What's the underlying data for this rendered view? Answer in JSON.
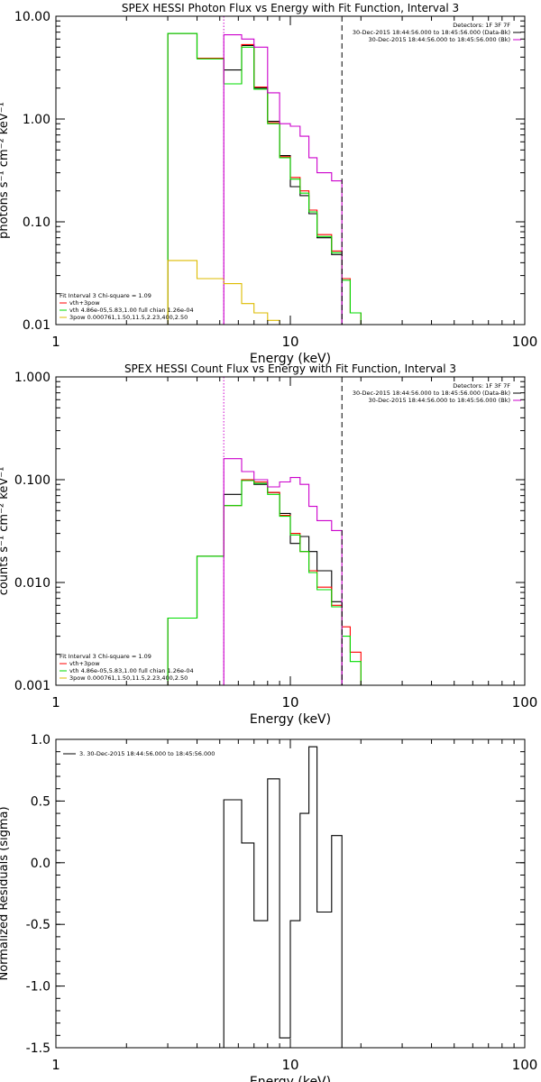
{
  "chart_data": [
    {
      "type": "line",
      "title": "SPEX HESSI Photon Flux vs Energy with Fit Function, Interval 3",
      "xlabel": "Energy (keV)",
      "ylabel": "photons s⁻¹ cm⁻² keV⁻¹",
      "xscale": "log",
      "yscale": "log",
      "xlim": [
        1,
        100
      ],
      "ylim": [
        0.01,
        10
      ],
      "x_ticks": [
        1,
        10,
        100
      ],
      "x_tick_labels": [
        "1",
        "10",
        "100"
      ],
      "y_ticks": [
        0.01,
        0.1,
        1,
        10
      ],
      "y_tick_labels": [
        "0.01",
        "0.10",
        "1.00",
        "10.00"
      ],
      "vlines": [
        {
          "x": 5.2,
          "style": "dotted",
          "color": "#cc00cc"
        },
        {
          "x": 16.6,
          "style": "dashed",
          "color": "#000000"
        }
      ],
      "legend_top_right": [
        "Detectors: 1F 3F 7F",
        "30-Dec-2015 18:44:56.000 to 18:45:56.000 (Data-Bk)",
        "30-Dec-2015 18:44:56.000 to 18:45:56.000 (Bk)"
      ],
      "legend_bottom_left": [
        "Fit Interval 3   Chi-square = 1.09",
        "vth+3pow",
        "vth 4.86e-05,5.83,1.00  full chian 1.26e-04",
        "3pow 0.000761,1.50,11.5,2.23,400,2.50"
      ],
      "series": [
        {
          "color": "#000000",
          "edges": [
            3,
            4,
            5.2,
            6.2,
            7,
            8,
            9,
            10,
            11,
            12,
            13,
            15,
            16.6
          ],
          "values": [
            6.8,
            3.9,
            3.0,
            5.2,
            2.0,
            0.95,
            0.44,
            0.22,
            0.18,
            0.12,
            0.07,
            0.048
          ]
        },
        {
          "color": "#ff0000",
          "edges": [
            3,
            4,
            5.2,
            6.2,
            7,
            8,
            9,
            10,
            11,
            12,
            13,
            15,
            16.6,
            18,
            20
          ],
          "values": [
            6.8,
            3.9,
            2.2,
            5.3,
            2.05,
            0.92,
            0.43,
            0.27,
            0.2,
            0.13,
            0.075,
            0.052,
            0.028,
            0.013
          ]
        },
        {
          "color": "#00dd00",
          "edges": [
            3,
            4,
            5.2,
            6.2,
            7,
            8,
            9,
            10,
            11,
            12,
            13,
            15,
            16.6,
            18,
            20
          ],
          "values": [
            6.8,
            3.85,
            2.2,
            5.0,
            1.95,
            0.9,
            0.42,
            0.26,
            0.19,
            0.125,
            0.072,
            0.05,
            0.027,
            0.013
          ]
        },
        {
          "color": "#cc00cc",
          "edges": [
            5.2,
            6.2,
            7,
            8,
            9,
            10,
            11,
            12,
            13,
            15,
            16.6
          ],
          "values": [
            6.6,
            6.0,
            5.0,
            1.8,
            0.9,
            0.85,
            0.68,
            0.42,
            0.3,
            0.25
          ]
        },
        {
          "color": "#ddbb00",
          "edges": [
            3,
            4,
            5.2,
            6.2,
            7,
            8,
            9,
            10
          ],
          "values": [
            0.042,
            0.028,
            0.025,
            0.016,
            0.013,
            0.011,
            0.01
          ]
        }
      ]
    },
    {
      "type": "line",
      "title": "SPEX HESSI Count Flux vs Energy with Fit Function, Interval 3",
      "xlabel": "Energy (keV)",
      "ylabel": "counts s⁻¹ cm⁻² keV⁻¹",
      "xscale": "log",
      "yscale": "log",
      "xlim": [
        1,
        100
      ],
      "ylim": [
        0.001,
        1
      ],
      "x_ticks": [
        1,
        10,
        100
      ],
      "x_tick_labels": [
        "1",
        "10",
        "100"
      ],
      "y_ticks": [
        0.001,
        0.01,
        0.1,
        1
      ],
      "y_tick_labels": [
        "0.001",
        "0.010",
        "0.100",
        "1.000"
      ],
      "vlines": [
        {
          "x": 5.2,
          "style": "dotted",
          "color": "#cc00cc"
        },
        {
          "x": 16.6,
          "style": "dashed",
          "color": "#000000"
        }
      ],
      "legend_top_right": [
        "Detectors: 1F 3F 7F",
        "30-Dec-2015 18:44:56.000 to 18:45:56.000 (Data-Bk)",
        "30-Dec-2015 18:44:56.000 to 18:45:56.000 (Bk)"
      ],
      "legend_bottom_left": [
        "Fit Interval 3   Chi-square = 1.09",
        "vth+3pow",
        "vth 4.86e-05,5.83,1.00  full chian 1.26e-04",
        "3pow 0.000761,1.50,11.5,2.23,400,2.50"
      ],
      "series": [
        {
          "color": "#000000",
          "edges": [
            3,
            4,
            5.2,
            6.2,
            7,
            8,
            9,
            10,
            11,
            12,
            13,
            15,
            16.6
          ],
          "values": [
            0.0045,
            0.018,
            0.072,
            0.1,
            0.09,
            0.075,
            0.047,
            0.024,
            0.028,
            0.02,
            0.013,
            0.0065
          ]
        },
        {
          "color": "#ff0000",
          "edges": [
            3,
            4,
            5.2,
            6.2,
            7,
            8,
            9,
            10,
            11,
            12,
            13,
            15,
            16.6,
            18,
            20
          ],
          "values": [
            0.0045,
            0.018,
            0.056,
            0.1,
            0.095,
            0.075,
            0.045,
            0.03,
            0.02,
            0.013,
            0.009,
            0.006,
            0.0037,
            0.0021
          ]
        },
        {
          "color": "#00dd00",
          "edges": [
            3,
            4,
            5.2,
            6.2,
            7,
            8,
            9,
            10,
            11,
            12,
            13,
            15,
            16.6,
            18,
            20
          ],
          "values": [
            0.0045,
            0.018,
            0.056,
            0.098,
            0.092,
            0.072,
            0.044,
            0.029,
            0.02,
            0.0125,
            0.0085,
            0.0058,
            0.003,
            0.0017
          ]
        },
        {
          "color": "#cc00cc",
          "edges": [
            5.2,
            6.2,
            7,
            8,
            9,
            10,
            11,
            12,
            13,
            15,
            16.6
          ],
          "values": [
            0.16,
            0.12,
            0.1,
            0.085,
            0.095,
            0.105,
            0.09,
            0.055,
            0.04,
            0.032
          ]
        }
      ]
    },
    {
      "type": "line",
      "title": "",
      "xlabel": "Energy (keV)",
      "ylabel": "Normalized Residuals (sigma)",
      "xscale": "log",
      "yscale": "linear",
      "xlim": [
        1,
        100
      ],
      "ylim": [
        -1.5,
        1.0
      ],
      "x_ticks": [
        1,
        10,
        100
      ],
      "x_tick_labels": [
        "1",
        "10",
        "100"
      ],
      "y_ticks": [
        -1.5,
        -1.0,
        -0.5,
        0.0,
        0.5,
        1.0
      ],
      "y_tick_labels": [
        "-1.5",
        "-1.0",
        "-0.5",
        "0.0",
        "0.5",
        "1.0"
      ],
      "legend": [
        "3. 30-Dec-2015 18:44:56.000 to 18:45:56.000"
      ],
      "series": [
        {
          "color": "#000000",
          "edges": [
            5.2,
            6.2,
            7,
            8,
            9,
            10,
            11,
            12,
            13,
            15,
            16.6
          ],
          "values": [
            0.51,
            0.16,
            -0.47,
            0.68,
            -1.42,
            -0.47,
            0.4,
            0.94,
            -0.4,
            0.22
          ]
        }
      ]
    }
  ]
}
